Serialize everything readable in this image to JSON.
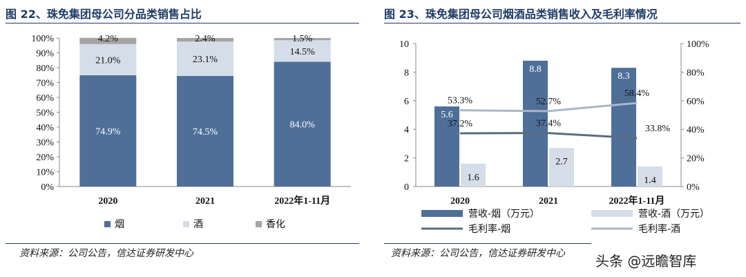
{
  "left": {
    "title": "图 22、珠免集团母公司分品类销售占比",
    "source": "资料来源：公司公告，信达证券研发中心"
  },
  "right": {
    "title": "图 23、珠免集团母公司烟酒品类销售收入及毛利率情况",
    "source": "资料来源：公司公告，信达证券研发中心"
  },
  "watermark": "头条 @远瞻智库",
  "colors": {
    "tobacco": "#4f6f98",
    "liquor": "#d5dde8",
    "fragrance": "#a5a5a5",
    "margin_tobacco": "#5a6d80",
    "margin_liquor": "#aab7c6",
    "axis": "#888888"
  },
  "chart_data": [
    {
      "type": "bar",
      "stacked": true,
      "percent": true,
      "categories": [
        "2020",
        "2021",
        "2022年1-11月"
      ],
      "series": [
        {
          "name": "烟",
          "values": [
            74.9,
            74.5,
            84.0
          ],
          "labels": [
            "74.9%",
            "74.5%",
            "84.0%"
          ]
        },
        {
          "name": "酒",
          "values": [
            21.0,
            23.1,
            14.5
          ],
          "labels": [
            "21.0%",
            "23.1%",
            "14.5%"
          ]
        },
        {
          "name": "香化",
          "values": [
            4.2,
            2.4,
            1.5
          ],
          "labels": [
            "4.2%",
            "2.4%",
            "1.5%"
          ]
        }
      ],
      "ylim": [
        0,
        100
      ],
      "yticks": [
        "0%",
        "10%",
        "20%",
        "30%",
        "40%",
        "50%",
        "60%",
        "70%",
        "80%",
        "90%",
        "100%"
      ],
      "legend": "bottom"
    },
    {
      "type": "bar+line",
      "categories": [
        "2020",
        "2021",
        "2022年1-11月"
      ],
      "bars": [
        {
          "name": "营收-烟（万元）",
          "values": [
            5.6,
            8.8,
            8.3
          ],
          "labels": [
            "5.6",
            "8.8",
            "8.3"
          ]
        },
        {
          "name": "营收-酒（万元）",
          "values": [
            1.6,
            2.7,
            1.4
          ],
          "labels": [
            "1.6",
            "2.7",
            "1.4"
          ]
        }
      ],
      "lines": [
        {
          "name": "毛利率-烟",
          "values": [
            37.2,
            37.4,
            33.8
          ],
          "labels": [
            "37.2%",
            "37.4%",
            "33.8%"
          ]
        },
        {
          "name": "毛利率-酒",
          "values": [
            53.3,
            52.7,
            58.4
          ],
          "labels": [
            "53.3%",
            "52.7%",
            "58.4%"
          ]
        }
      ],
      "ylim_left": [
        0,
        10
      ],
      "yticks_left": [
        "0",
        "2",
        "4",
        "6",
        "8",
        "10"
      ],
      "ylim_right": [
        0,
        100
      ],
      "yticks_right": [
        "0%",
        "20%",
        "40%",
        "60%",
        "80%",
        "100%"
      ],
      "legend": "bottom"
    }
  ]
}
